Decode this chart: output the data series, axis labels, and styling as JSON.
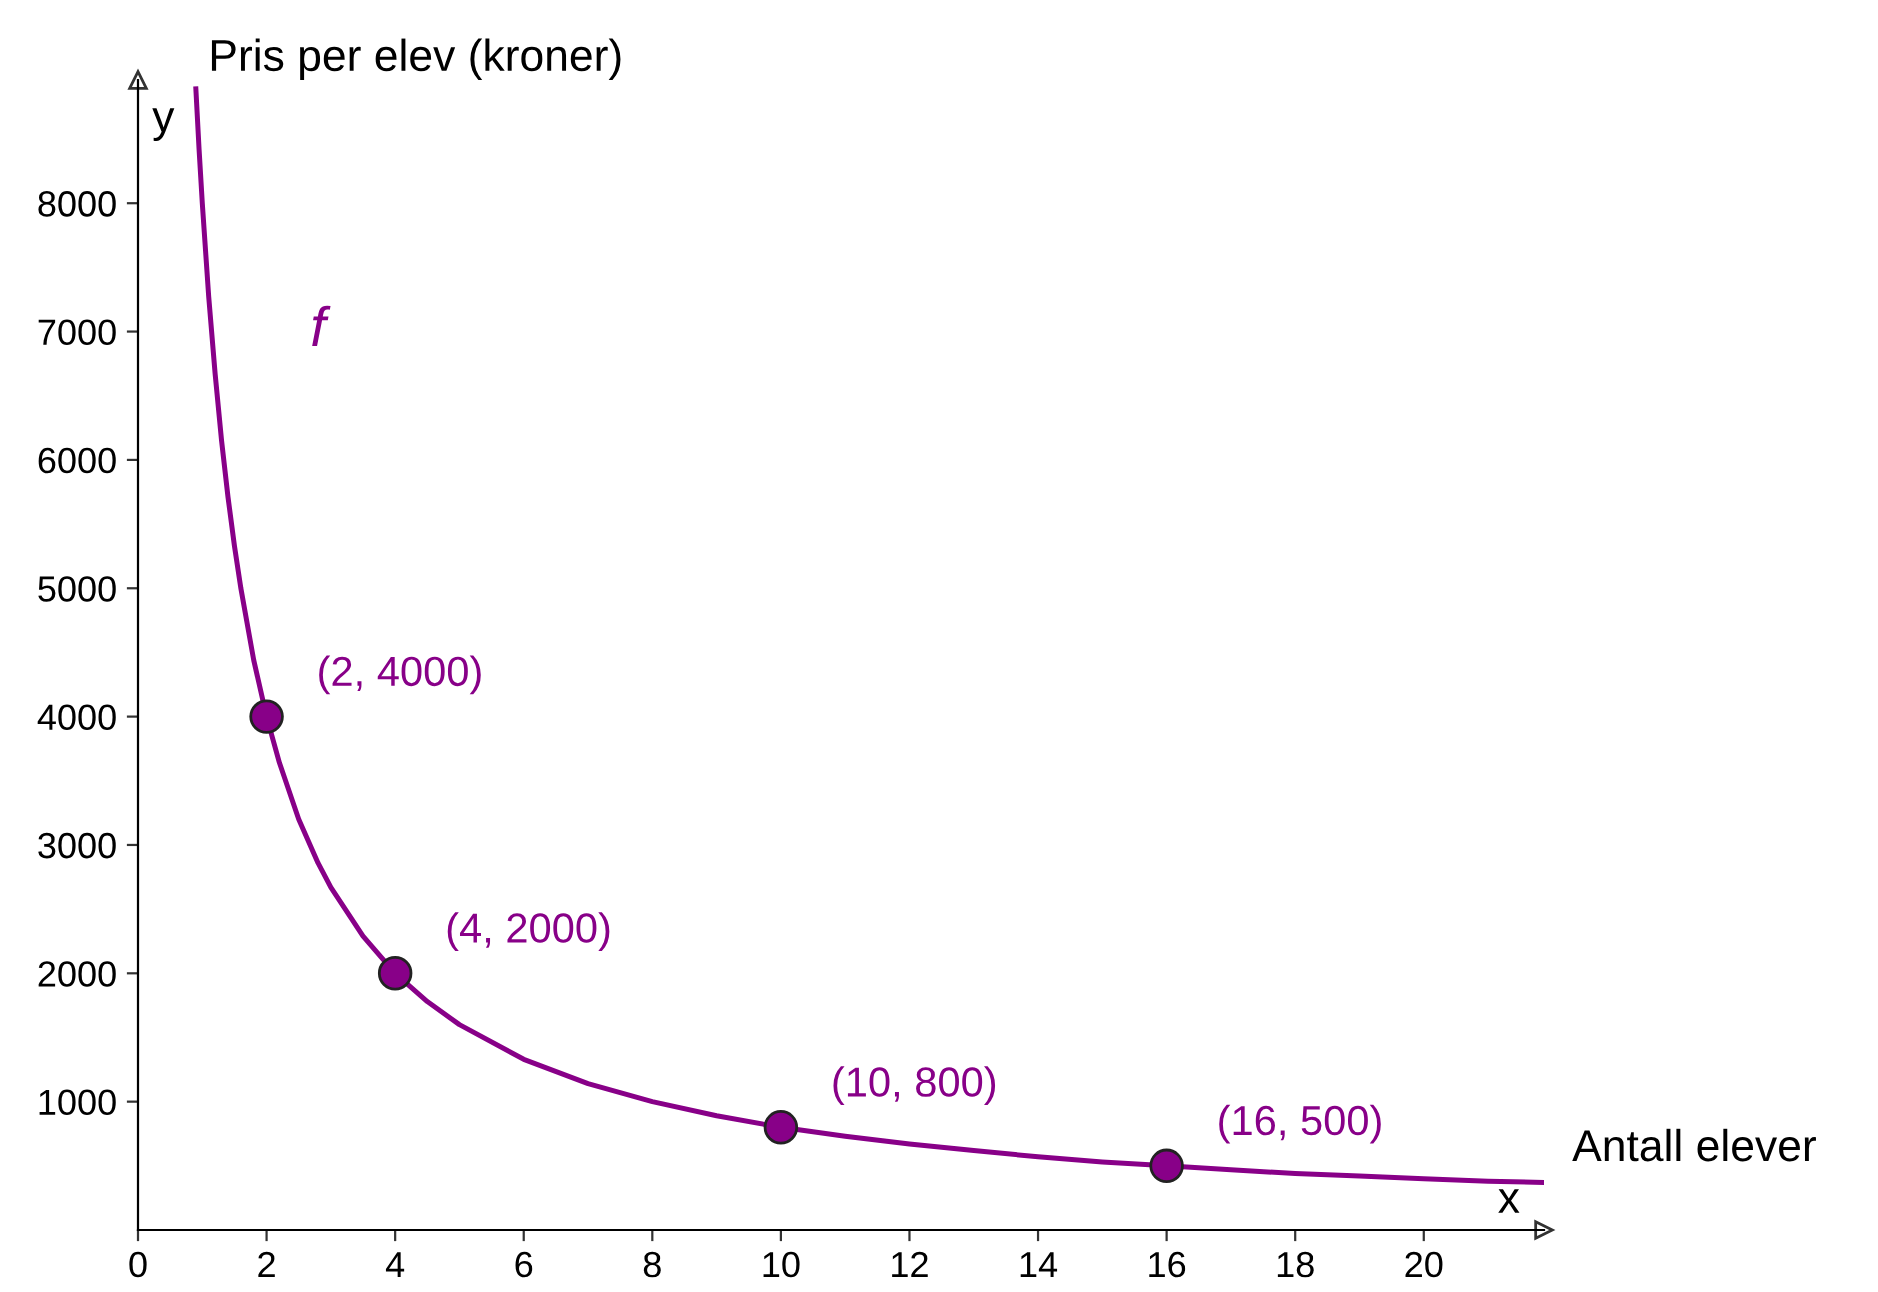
{
  "chart_data": {
    "type": "line",
    "xlabel": "Antall elever",
    "ylabel": "Pris per elev (kroner)",
    "annotations": [
      "x",
      "y"
    ],
    "xlim": [
      0,
      21.87
    ],
    "ylim": [
      0,
      8960
    ],
    "xticks": [
      0,
      2,
      4,
      6,
      8,
      10,
      12,
      14,
      16,
      18,
      20
    ],
    "yticks": [
      1000,
      2000,
      3000,
      4000,
      5000,
      6000,
      7000,
      8000
    ],
    "grid": false,
    "legend": false,
    "series": [
      {
        "name": "f",
        "color": "#880088",
        "marker": "none",
        "x": [
          0.9,
          0.95,
          1,
          1.1,
          1.2,
          1.3,
          1.4,
          1.5,
          1.6,
          1.8,
          2,
          2.2,
          2.5,
          2.8,
          3,
          3.5,
          4,
          4.5,
          5,
          6,
          7,
          8,
          9,
          10,
          11,
          12,
          13,
          14,
          15,
          16,
          17,
          18,
          19,
          20,
          21,
          21.85
        ],
        "values": [
          8890,
          8420,
          8000,
          7270,
          6670,
          6150,
          5710,
          5330,
          5000,
          4440,
          4000,
          3640,
          3200,
          2860,
          2670,
          2290,
          2000,
          1780,
          1600,
          1330,
          1140,
          1000,
          890,
          800,
          730,
          670,
          620,
          570,
          530,
          500,
          470,
          440,
          420,
          400,
          380,
          370
        ]
      },
      {
        "type": "scatter",
        "color": "#880088",
        "marker": "circle",
        "x": [
          2,
          4,
          10,
          16
        ],
        "values": [
          4000,
          2000,
          800,
          500
        ],
        "value_labels": [
          "(2, 4000)",
          "(4, 2000)",
          "(10, 800)",
          "(16, 500)"
        ]
      }
    ]
  }
}
